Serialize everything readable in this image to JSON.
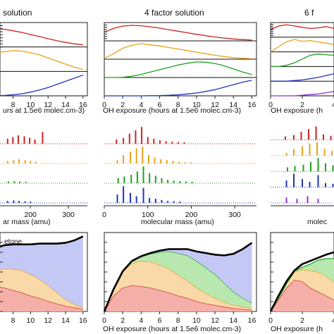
{
  "figure": {
    "titles": [
      "solution",
      "4 factor solution",
      "6 f"
    ],
    "x_tick_labels_hours": [
      "8",
      "10",
      "12",
      "14",
      "16"
    ],
    "x_tick_labels_hours_full": [
      "0",
      "2",
      "4",
      "6",
      "8",
      "10",
      "12",
      "14",
      "16"
    ],
    "x_tick_labels_mass": [
      "200",
      "300"
    ],
    "x_tick_labels_mass_full": [
      "0",
      "100",
      "200",
      "300"
    ],
    "x_tick_labels_right_partial": [
      "0",
      "2",
      "4"
    ],
    "axis_labels": {
      "oh_left": "urs at 1.5e6 molec.cm-3)",
      "oh_mid": "OH exposure (hours at 1.5e6 molec.cm-3)",
      "oh_right": "OH exposure (h",
      "mass_left": "ar mass (amu)",
      "mass_mid": "molecular mass (amu)",
      "mass_right": "molec"
    },
    "annotation": "etone",
    "colors": {
      "red": "#cc2222",
      "orange": "#e8a21a",
      "green": "#20a020",
      "blue": "#2233bb",
      "purple": "#8833cc",
      "fill_red": "#f4b0a8",
      "fill_orange": "#f9d9a8",
      "fill_green": "#b8e8b0",
      "fill_blue": "#c4c8f4"
    }
  },
  "chart_data": [
    {
      "type": "line",
      "panel": "4 factor solution — factor time series (stacked, normalized)",
      "title": "4 factor solution",
      "xlabel": "OH exposure (hours at 1.5e6 molec.cm-3)",
      "xlim": [
        0,
        16.5
      ],
      "x": [
        0,
        1,
        2,
        3,
        4,
        5,
        6,
        7,
        8,
        9,
        10,
        11,
        12,
        13,
        14,
        15,
        16
      ],
      "series": [
        {
          "color": "red",
          "values": [
            0.55,
            0.8,
            0.95,
            1.0,
            0.97,
            0.9,
            0.82,
            0.72,
            0.62,
            0.52,
            0.42,
            0.33,
            0.25,
            0.18,
            0.12,
            0.08,
            0.05
          ]
        },
        {
          "color": "orange",
          "values": [
            0.05,
            0.35,
            0.7,
            0.9,
            1.0,
            0.92,
            0.85,
            0.75,
            0.65,
            0.55,
            0.45,
            0.35,
            0.25,
            0.17,
            0.1,
            0.06,
            0.03
          ]
        },
        {
          "color": "green",
          "values": [
            0.0,
            0.0,
            0.02,
            0.08,
            0.2,
            0.35,
            0.5,
            0.65,
            0.8,
            0.92,
            1.0,
            0.98,
            0.9,
            0.75,
            0.55,
            0.35,
            0.2
          ]
        },
        {
          "color": "blue",
          "values": [
            0.0,
            0.0,
            0.0,
            0.0,
            0.0,
            0.01,
            0.02,
            0.04,
            0.07,
            0.12,
            0.18,
            0.28,
            0.4,
            0.55,
            0.72,
            0.88,
            1.0
          ]
        }
      ]
    },
    {
      "type": "line",
      "panel": "left (partial) — factor time series",
      "xlim": [
        6.5,
        16.5
      ],
      "x": [
        6,
        7,
        8,
        9,
        10,
        11,
        12,
        13,
        14,
        15,
        16
      ],
      "series": [
        {
          "color": "red",
          "values": [
            0.9,
            0.85,
            0.78,
            0.7,
            0.6,
            0.5,
            0.4,
            0.3,
            0.22,
            0.15,
            0.1
          ]
        },
        {
          "color": "orange",
          "values": [
            0.9,
            0.95,
            1.0,
            0.98,
            0.9,
            0.8,
            0.65,
            0.5,
            0.35,
            0.2,
            0.1
          ]
        },
        {
          "color": "blue",
          "values": [
            0.0,
            0.02,
            0.05,
            0.1,
            0.18,
            0.28,
            0.4,
            0.55,
            0.7,
            0.85,
            1.0
          ]
        }
      ]
    },
    {
      "type": "line",
      "panel": "right (partial) — 6 factor time series",
      "title": "6 f",
      "xlim": [
        0,
        4
      ],
      "x": [
        0,
        0.5,
        1,
        1.5,
        2,
        2.5,
        3,
        3.5,
        4
      ],
      "series": [
        {
          "color": "red",
          "values": [
            0.6,
            0.9,
            1.0,
            0.9,
            0.8,
            0.7,
            0.75,
            0.85,
            0.7
          ]
        },
        {
          "color": "orange",
          "values": [
            0.0,
            0.4,
            0.8,
            1.0,
            0.85,
            0.9,
            0.8,
            0.7,
            0.6
          ]
        },
        {
          "color": "green",
          "values": [
            0.0,
            0.0,
            0.1,
            0.3,
            0.6,
            0.9,
            1.0,
            0.95,
            0.9
          ]
        },
        {
          "color": "blue",
          "values": [
            0.0,
            0.0,
            0.0,
            0.05,
            0.1,
            0.2,
            0.3,
            0.45,
            0.6
          ]
        },
        {
          "color": "purple",
          "values": [
            0.0,
            0.0,
            0.0,
            0.0,
            0.05,
            0.1,
            0.15,
            0.25,
            0.35
          ]
        }
      ]
    },
    {
      "type": "bar",
      "panel": "4 factor solution — mass spectra",
      "xlabel": "molecular mass (amu)",
      "xlim": [
        0,
        350
      ],
      "spectra": [
        {
          "color": "red",
          "peaks": [
            [
              28,
              0.25
            ],
            [
              44,
              0.35
            ],
            [
              58,
              0.6
            ],
            [
              72,
              0.8
            ],
            [
              86,
              1.0
            ],
            [
              100,
              0.4
            ],
            [
              114,
              0.3
            ],
            [
              128,
              0.2
            ],
            [
              142,
              0.15
            ],
            [
              156,
              0.12
            ],
            [
              170,
              0.1
            ],
            [
              184,
              0.08
            ]
          ]
        },
        {
          "color": "orange",
          "peaks": [
            [
              30,
              0.2
            ],
            [
              44,
              0.5
            ],
            [
              60,
              0.7
            ],
            [
              74,
              0.9
            ],
            [
              88,
              1.0
            ],
            [
              102,
              0.5
            ],
            [
              116,
              0.35
            ],
            [
              130,
              0.25
            ],
            [
              144,
              0.2
            ],
            [
              158,
              0.15
            ],
            [
              172,
              0.1
            ],
            [
              186,
              0.08
            ],
            [
              200,
              0.06
            ]
          ]
        },
        {
          "color": "green",
          "peaks": [
            [
              32,
              0.3
            ],
            [
              46,
              0.4
            ],
            [
              62,
              0.5
            ],
            [
              76,
              0.7
            ],
            [
              90,
              1.0
            ],
            [
              104,
              0.6
            ],
            [
              118,
              0.45
            ],
            [
              132,
              0.3
            ],
            [
              146,
              0.2
            ],
            [
              160,
              0.15
            ],
            [
              174,
              0.12
            ],
            [
              188,
              0.1
            ],
            [
              202,
              0.08
            ]
          ]
        },
        {
          "color": "blue",
          "peaks": [
            [
              30,
              0.5
            ],
            [
              44,
              1.0
            ],
            [
              60,
              0.6
            ],
            [
              74,
              0.4
            ],
            [
              90,
              0.9
            ],
            [
              104,
              0.3
            ],
            [
              118,
              0.25
            ],
            [
              132,
              0.18
            ],
            [
              146,
              0.12
            ],
            [
              160,
              0.1
            ],
            [
              174,
              0.08
            ]
          ]
        }
      ]
    },
    {
      "type": "bar",
      "panel": "left (partial) — mass spectra",
      "xlabel": "ar mass (amu)",
      "xlim": [
        120,
        350
      ],
      "spectra": [
        {
          "color": "red",
          "peaks": [
            [
              140,
              0.3
            ],
            [
              154,
              0.4
            ],
            [
              168,
              0.5
            ],
            [
              184,
              0.45
            ],
            [
              198,
              0.35
            ],
            [
              212,
              0.25
            ],
            [
              232,
              0.7
            ]
          ]
        },
        {
          "color": "orange",
          "peaks": [
            [
              140,
              0.15
            ],
            [
              156,
              0.2
            ],
            [
              170,
              0.25
            ],
            [
              186,
              0.2
            ],
            [
              200,
              0.15
            ],
            [
              214,
              0.1
            ]
          ]
        },
        {
          "color": "green",
          "peaks": [
            [
              142,
              0.1
            ],
            [
              158,
              0.12
            ],
            [
              172,
              0.1
            ],
            [
              188,
              0.08
            ]
          ]
        },
        {
          "color": "blue",
          "peaks": [
            [
              140,
              0.12
            ],
            [
              156,
              0.15
            ],
            [
              170,
              0.12
            ],
            [
              186,
              0.1
            ],
            [
              200,
              0.08
            ]
          ]
        }
      ]
    },
    {
      "type": "area",
      "panel": "4 factor solution — stacked factor contributions",
      "xlabel": "OH exposure (hours at 1.5e6 molec.cm-3)",
      "xlim": [
        0,
        16.5
      ],
      "x": [
        0,
        1,
        2,
        3,
        4,
        5,
        6,
        7,
        8,
        9,
        10,
        11,
        12,
        13,
        14,
        15,
        16
      ],
      "series": [
        {
          "color": "red",
          "values": [
            0,
            0.2,
            0.3,
            0.33,
            0.32,
            0.3,
            0.27,
            0.24,
            0.2,
            0.17,
            0.13,
            0.1,
            0.08,
            0.06,
            0.04,
            0.03,
            0.02
          ]
        },
        {
          "color": "orange",
          "values": [
            0,
            0.08,
            0.2,
            0.28,
            0.32,
            0.33,
            0.32,
            0.3,
            0.26,
            0.22,
            0.17,
            0.13,
            0.09,
            0.06,
            0.04,
            0.03,
            0.02
          ]
        },
        {
          "color": "green",
          "values": [
            0,
            0,
            0.01,
            0.03,
            0.06,
            0.1,
            0.16,
            0.22,
            0.28,
            0.32,
            0.34,
            0.33,
            0.3,
            0.24,
            0.17,
            0.11,
            0.07
          ]
        },
        {
          "color": "blue",
          "values": [
            0,
            0,
            0,
            0,
            0,
            0.01,
            0.02,
            0.03,
            0.05,
            0.08,
            0.12,
            0.18,
            0.25,
            0.35,
            0.48,
            0.62,
            0.76
          ]
        }
      ],
      "total": [
        0,
        0.28,
        0.51,
        0.64,
        0.7,
        0.74,
        0.77,
        0.79,
        0.79,
        0.79,
        0.76,
        0.74,
        0.72,
        0.71,
        0.73,
        0.79,
        0.87
      ]
    },
    {
      "type": "area",
      "panel": "left (partial) — stacked factor contributions",
      "xlim": [
        6.5,
        16.5
      ],
      "x": [
        6,
        7,
        8,
        9,
        10,
        11,
        12,
        13,
        14,
        15,
        16
      ],
      "series": [
        {
          "color": "red",
          "values": [
            0.32,
            0.3,
            0.27,
            0.24,
            0.2,
            0.17,
            0.13,
            0.1,
            0.07,
            0.05,
            0.03
          ]
        },
        {
          "color": "orange",
          "values": [
            0.2,
            0.24,
            0.27,
            0.28,
            0.27,
            0.24,
            0.2,
            0.14,
            0.08,
            0.04,
            0.02
          ]
        },
        {
          "color": "blue",
          "values": [
            0.28,
            0.3,
            0.31,
            0.33,
            0.38,
            0.45,
            0.53,
            0.62,
            0.72,
            0.81,
            0.9
          ]
        }
      ],
      "total": [
        0.8,
        0.84,
        0.85,
        0.85,
        0.85,
        0.86,
        0.86,
        0.86,
        0.87,
        0.9,
        0.95
      ]
    },
    {
      "type": "area",
      "panel": "right (partial) — stacked factor contributions",
      "xlim": [
        0,
        4
      ],
      "x": [
        0,
        0.5,
        1,
        1.5,
        2,
        2.5,
        3,
        3.5,
        4
      ],
      "series": [
        {
          "color": "red",
          "values": [
            0,
            0.15,
            0.3,
            0.4,
            0.38,
            0.3,
            0.25,
            0.2,
            0.15
          ]
        },
        {
          "color": "orange",
          "values": [
            0,
            0.02,
            0.05,
            0.1,
            0.15,
            0.22,
            0.25,
            0.25,
            0.22
          ]
        },
        {
          "color": "green",
          "values": [
            0,
            0,
            0,
            0.01,
            0.03,
            0.08,
            0.15,
            0.22,
            0.3
          ]
        }
      ],
      "total": [
        0,
        0.2,
        0.38,
        0.52,
        0.6,
        0.64,
        0.68,
        0.72,
        0.75
      ]
    }
  ]
}
